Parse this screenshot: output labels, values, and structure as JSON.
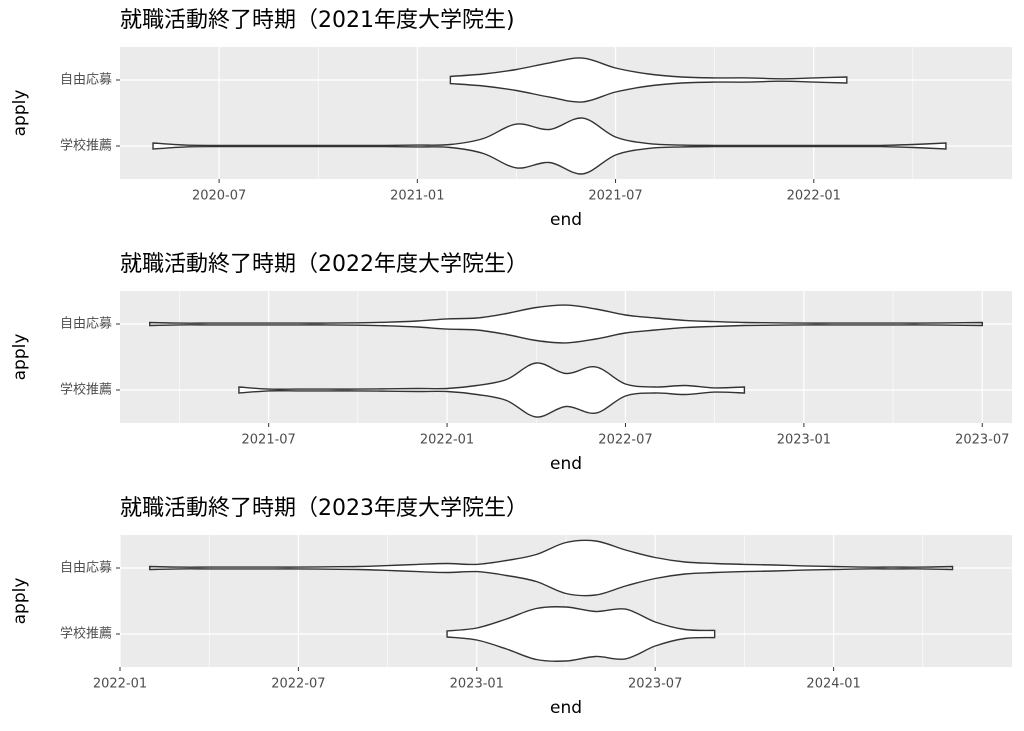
{
  "chart_data": [
    {
      "type": "violin",
      "title": "就職活動終了時期（2021年度大学院生)",
      "xlabel": "end",
      "ylabel": "apply",
      "categories": [
        "自由応募",
        "学校推薦"
      ],
      "fill": "#ffffff",
      "stroke": "#333333",
      "grid": true,
      "xlim": [
        "2020-04",
        "2022-07"
      ],
      "xticks": [
        "2020-07",
        "2021-01",
        "2021-07",
        "2022-01"
      ],
      "series": [
        {
          "x": [
            "2021-02",
            "2021-03",
            "2021-04",
            "2021-05",
            "2021-06",
            "2021-07",
            "2021-08",
            "2021-09",
            "2021-10",
            "2021-11",
            "2021-12",
            "2022-01",
            "2022-02"
          ],
          "values": [
            0.12,
            0.2,
            0.35,
            0.57,
            0.73,
            0.4,
            0.2,
            0.1,
            0.07,
            0.07,
            0.04,
            0.07,
            0.1
          ]
        },
        {
          "x": [
            "2020-05",
            "2020-06",
            "2020-07",
            "2020-08",
            "2020-09",
            "2020-10",
            "2020-11",
            "2020-12",
            "2021-01",
            "2021-02",
            "2021-03",
            "2021-04",
            "2021-05",
            "2021-06",
            "2021-07",
            "2021-08",
            "2021-09",
            "2021-10",
            "2021-11",
            "2021-12",
            "2022-01",
            "2022-02",
            "2022-03",
            "2022-04",
            "2022-05"
          ],
          "values": [
            0.1,
            0.03,
            0.02,
            0.02,
            0.02,
            0.02,
            0.02,
            0.02,
            0.03,
            0.05,
            0.25,
            0.73,
            0.55,
            0.93,
            0.3,
            0.08,
            0.03,
            0.02,
            0.02,
            0.02,
            0.02,
            0.02,
            0.02,
            0.05,
            0.1
          ]
        }
      ]
    },
    {
      "type": "violin",
      "title": "就職活動終了時期（2022年度大学院生）",
      "xlabel": "end",
      "ylabel": "apply",
      "categories": [
        "自由応募",
        "学校推薦"
      ],
      "fill": "#ffffff",
      "stroke": "#333333",
      "grid": true,
      "xlim": [
        "2021-02",
        "2023-08"
      ],
      "xticks": [
        "2021-07",
        "2022-01",
        "2022-07",
        "2023-01",
        "2023-07"
      ],
      "series": [
        {
          "x": [
            "2021-03",
            "2021-04",
            "2021-05",
            "2021-06",
            "2021-07",
            "2021-08",
            "2021-09",
            "2021-10",
            "2021-11",
            "2021-12",
            "2022-01",
            "2022-02",
            "2022-03",
            "2022-04",
            "2022-05",
            "2022-06",
            "2022-07",
            "2022-08",
            "2022-09",
            "2022-10",
            "2022-11",
            "2022-12",
            "2023-01",
            "2023-02",
            "2023-03",
            "2023-04",
            "2023-05",
            "2023-06",
            "2023-07"
          ],
          "values": [
            0.05,
            0.03,
            0.03,
            0.03,
            0.03,
            0.03,
            0.03,
            0.04,
            0.06,
            0.1,
            0.17,
            0.2,
            0.35,
            0.55,
            0.63,
            0.5,
            0.3,
            0.2,
            0.12,
            0.08,
            0.05,
            0.04,
            0.03,
            0.03,
            0.03,
            0.03,
            0.03,
            0.04,
            0.05
          ]
        },
        {
          "x": [
            "2021-06",
            "2021-07",
            "2021-08",
            "2021-09",
            "2021-10",
            "2021-11",
            "2021-12",
            "2022-01",
            "2022-02",
            "2022-03",
            "2022-04",
            "2022-05",
            "2022-06",
            "2022-07",
            "2022-08",
            "2022-09",
            "2022-10",
            "2022-11"
          ],
          "values": [
            0.1,
            0.03,
            0.03,
            0.03,
            0.03,
            0.04,
            0.05,
            0.05,
            0.15,
            0.35,
            0.9,
            0.55,
            0.77,
            0.2,
            0.1,
            0.15,
            0.07,
            0.1
          ]
        }
      ]
    },
    {
      "type": "violin",
      "title": "就職活動終了時期（2023年度大学院生）",
      "xlabel": "end",
      "ylabel": "apply",
      "categories": [
        "自由応募",
        "学校推薦"
      ],
      "fill": "#ffffff",
      "stroke": "#333333",
      "grid": true,
      "xlim": [
        "2022-01",
        "2024-07"
      ],
      "xticks": [
        "2022-01",
        "2022-07",
        "2023-01",
        "2023-07",
        "2024-01"
      ],
      "series": [
        {
          "x": [
            "2022-02",
            "2022-03",
            "2022-04",
            "2022-05",
            "2022-06",
            "2022-07",
            "2022-08",
            "2022-09",
            "2022-10",
            "2022-11",
            "2022-12",
            "2023-01",
            "2023-02",
            "2023-03",
            "2023-04",
            "2023-05",
            "2023-06",
            "2023-07",
            "2023-08",
            "2023-09",
            "2023-10",
            "2023-11",
            "2023-12",
            "2024-01",
            "2024-02",
            "2024-03",
            "2024-04",
            "2024-05"
          ],
          "values": [
            0.05,
            0.03,
            0.03,
            0.03,
            0.03,
            0.03,
            0.04,
            0.05,
            0.08,
            0.12,
            0.15,
            0.12,
            0.25,
            0.45,
            0.85,
            0.9,
            0.6,
            0.35,
            0.2,
            0.15,
            0.12,
            0.1,
            0.07,
            0.05,
            0.03,
            0.03,
            0.03,
            0.05
          ]
        },
        {
          "x": [
            "2022-12",
            "2023-01",
            "2023-02",
            "2023-03",
            "2023-04",
            "2023-05",
            "2023-06",
            "2023-07",
            "2023-08",
            "2023-09"
          ],
          "values": [
            0.1,
            0.2,
            0.5,
            0.85,
            0.9,
            0.75,
            0.83,
            0.4,
            0.15,
            0.12
          ]
        }
      ]
    }
  ]
}
